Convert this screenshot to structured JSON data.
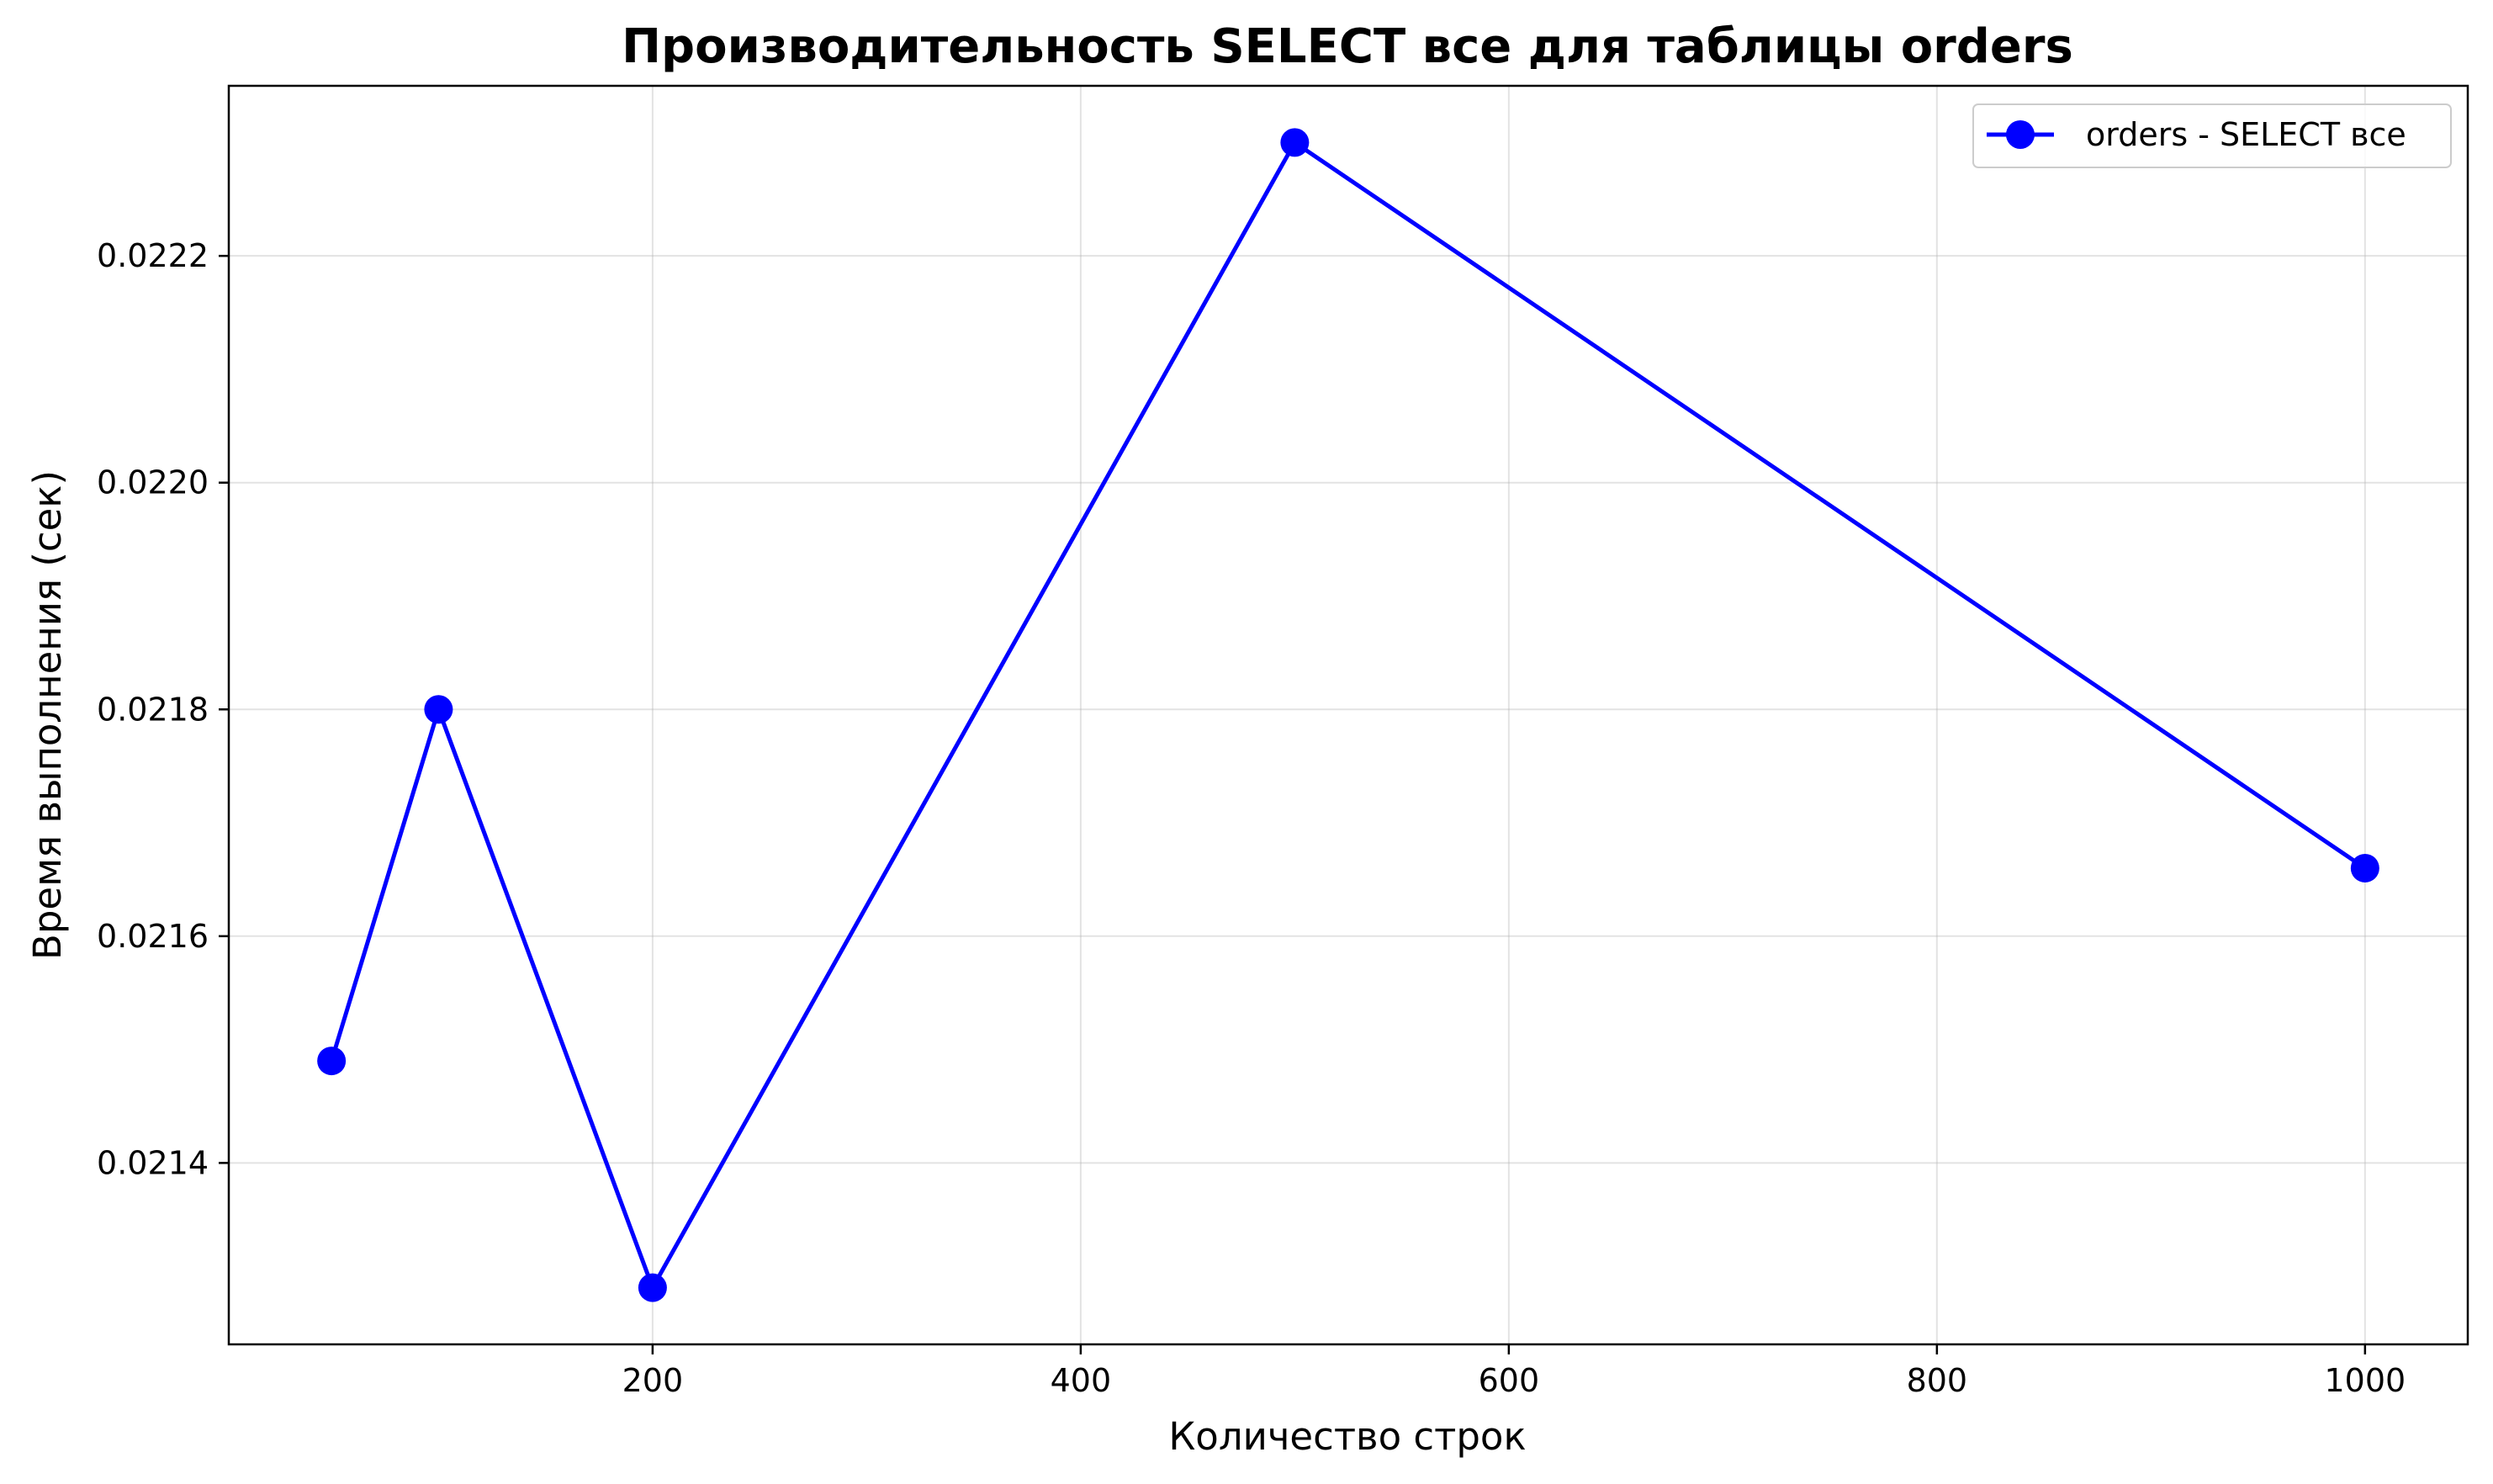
{
  "chart_data": {
    "type": "line",
    "title": "Производительность SELECT все для таблицы orders",
    "xlabel": "Количество строк",
    "ylabel": "Время выполнения (сек)",
    "xlim": [
      2,
      1048
    ],
    "ylim": [
      0.02124,
      0.02235
    ],
    "xticks": [
      200,
      400,
      600,
      800,
      1000
    ],
    "xtick_labels": [
      "200",
      "400",
      "600",
      "800",
      "1000"
    ],
    "yticks": [
      0.0214,
      0.0216,
      0.0218,
      0.022,
      0.0222
    ],
    "ytick_labels": [
      "0.0214",
      "0.0216",
      "0.0218",
      "0.0220",
      "0.0222"
    ],
    "grid": true,
    "legend_position": "top-right",
    "series": [
      {
        "name": "orders - SELECT все",
        "color": "#0000ff",
        "marker": "circle",
        "x": [
          50,
          100,
          200,
          500,
          1000
        ],
        "y": [
          0.02149,
          0.0218,
          0.02129,
          0.0223,
          0.02166
        ]
      }
    ]
  }
}
